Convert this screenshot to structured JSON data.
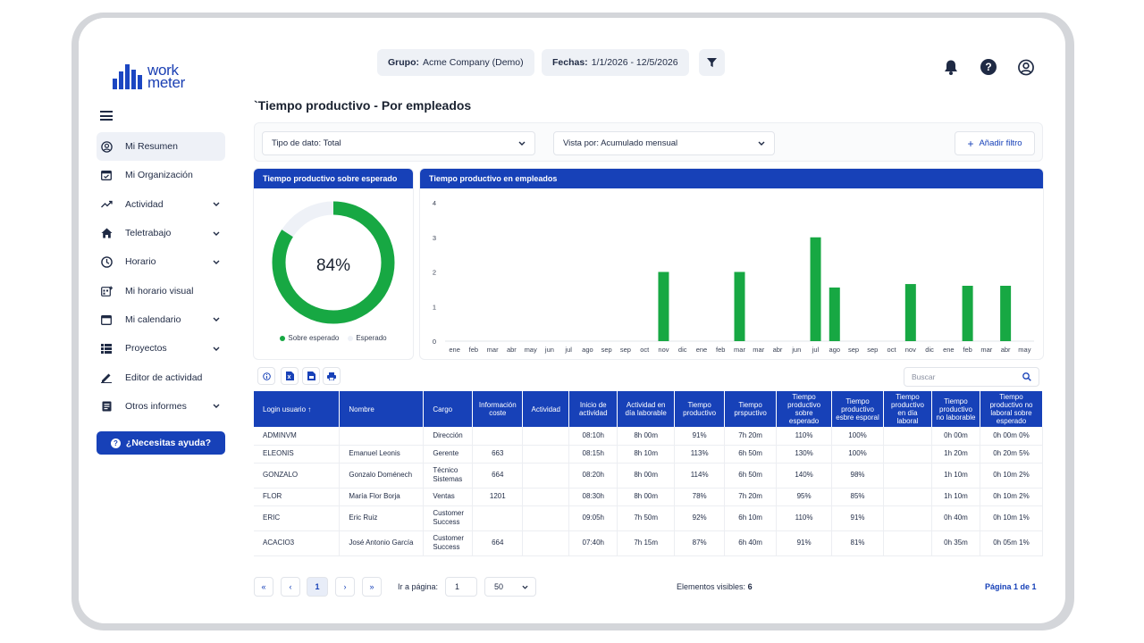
{
  "app": {
    "logo_line1": "work",
    "logo_line2": "meter",
    "colors": {
      "primary": "#1741b8",
      "success": "#17a843",
      "remaining": "#eef1f7"
    }
  },
  "sidebar": {
    "items": [
      {
        "label": "Mi Resumen",
        "icon": "user-circle-icon",
        "active": true,
        "has_chevron": false
      },
      {
        "label": "Mi Organización",
        "icon": "calendar-check-icon",
        "active": false,
        "has_chevron": false
      },
      {
        "label": "Actividad",
        "icon": "trend-icon",
        "active": false,
        "has_chevron": true
      },
      {
        "label": "Teletrabajo",
        "icon": "home-icon",
        "active": false,
        "has_chevron": true
      },
      {
        "label": "Horario",
        "icon": "clock-icon",
        "active": false,
        "has_chevron": true
      },
      {
        "label": "Mi horario visual",
        "icon": "schedule-icon",
        "active": false,
        "has_chevron": false
      },
      {
        "label": "Mi calendario",
        "icon": "calendar-icon",
        "active": false,
        "has_chevron": true
      },
      {
        "label": "Proyectos",
        "icon": "list-icon",
        "active": false,
        "has_chevron": true
      },
      {
        "label": "Editor de actividad",
        "icon": "pencil-icon",
        "active": false,
        "has_chevron": false
      },
      {
        "label": "Otros informes",
        "icon": "document-icon",
        "active": false,
        "has_chevron": true
      }
    ],
    "help_label": "¿Necesitas ayuda?"
  },
  "header": {
    "group_label": "Grupo:",
    "group_value": "Acme Company (Demo)",
    "dates_label": "Fechas:",
    "dates_value": "1/1/2026 - 12/5/2026"
  },
  "page": {
    "title": "`Tiempo productivo - Por empleados"
  },
  "filters": {
    "data_type": "Tipo de dato: Total",
    "view_by": "Vista por: Acumulado mensual",
    "add_filter": "Añadir filtro"
  },
  "donut": {
    "title": "Tiempo productivo sobre esperado",
    "percent": 84,
    "percent_label": "84%",
    "legend_productive": "Sobre esperado",
    "legend_expected": "Esperado"
  },
  "chart_data": {
    "type": "bar",
    "title": "Tiempo productivo en empleados",
    "categories": [
      "ene",
      "feb",
      "mar",
      "abr",
      "may",
      "jun",
      "jul",
      "ago",
      "sep",
      "sep",
      "oct",
      "nov",
      "dic",
      "ene",
      "feb",
      "mar",
      "mar",
      "abr",
      "jun",
      "jul",
      "ago",
      "sep",
      "sep",
      "oct",
      "nov",
      "dic",
      "ene",
      "feb",
      "mar",
      "abr",
      "may"
    ],
    "values": [
      0,
      0,
      0,
      0,
      0,
      0,
      0,
      0,
      0,
      0,
      0,
      2,
      0,
      0,
      0,
      2,
      0,
      0,
      0,
      3,
      1.55,
      0,
      0,
      0,
      1.65,
      0,
      0,
      1.6,
      0,
      1.6,
      0
    ],
    "yticks": [
      "0",
      "1",
      "2",
      "3",
      "4"
    ],
    "ylim": [
      0,
      4
    ],
    "color": "#17a843"
  },
  "table": {
    "search_placeholder": "Buscar",
    "columns": [
      "Login usuario ↑",
      "Nombre",
      "Cargo",
      "Información coste",
      "Actividad",
      "Inicio de actividad",
      "Actividad en día laborable",
      "Tiempo productivo",
      "Tiempo prspuctivo",
      "Tiempo productivo sobre esperado",
      "Tiempo productivo esbre esporal",
      "Tiempo productivo en día laboral",
      "Tiempo productivo no laborable",
      "Tiempo productivo no laboral sobre esperado"
    ],
    "rows": [
      [
        "ADMINVM",
        "",
        "Dirección",
        "",
        "",
        "08:10h",
        "8h 00m",
        "91%",
        "7h 20m",
        "110%",
        "100%",
        "",
        "0h 00m",
        "0h 00m 0%"
      ],
      [
        "ELEONIS",
        "Emanuel Leonis",
        "Gerente",
        "663",
        "",
        "08:15h",
        "8h 10m",
        "113%",
        "6h 50m",
        "130%",
        "100%",
        "",
        "1h 20m",
        "0h 20m 5%"
      ],
      [
        "GONZALO",
        "Gonzalo Doménech",
        "Técnico Sistemas",
        "664",
        "",
        "08:20h",
        "8h 00m",
        "114%",
        "6h 50m",
        "140%",
        "98%",
        "",
        "1h 10m",
        "0h 10m 2%"
      ],
      [
        "FLOR",
        "María Flor Borja",
        "Ventas",
        "1201",
        "",
        "08:30h",
        "8h 00m",
        "78%",
        "7h 20m",
        "95%",
        "85%",
        "",
        "1h 10m",
        "0h 10m 2%"
      ],
      [
        "ERIC",
        "Eric Ruiz",
        "Customer Success",
        "",
        "",
        "09:05h",
        "7h 50m",
        "92%",
        "6h 10m",
        "110%",
        "91%",
        "",
        "0h 40m",
        "0h 10m 1%"
      ],
      [
        "ACACIO3",
        "José Antonio García",
        "Customer Success",
        "664",
        "",
        "07:40h",
        "7h 15m",
        "87%",
        "6h 40m",
        "91%",
        "81%",
        "",
        "0h 35m",
        "0h 05m 1%"
      ]
    ]
  },
  "pagination": {
    "first": "«",
    "prev": "‹",
    "current": "1",
    "next": "›",
    "last": "»",
    "goto_label": "Ir a página:",
    "goto_value": "1",
    "page_size": "50",
    "visible_label": "Elementos visibles:",
    "visible_count": "6",
    "page_info": "Página 1 de 1"
  }
}
